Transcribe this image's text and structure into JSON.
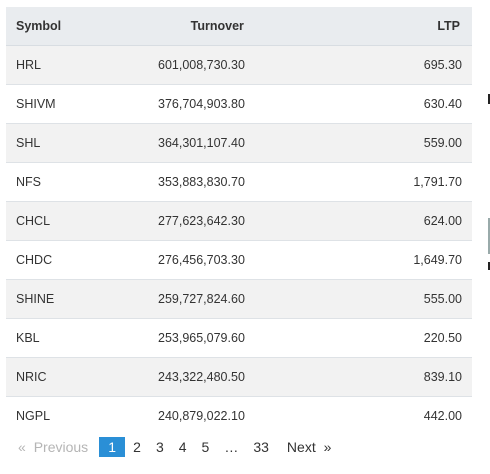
{
  "table": {
    "headers": {
      "symbol": "Symbol",
      "turnover": "Turnover",
      "ltp": "LTP"
    },
    "rows": [
      {
        "symbol": "HRL",
        "turnover": "601,008,730.30",
        "ltp": "695.30"
      },
      {
        "symbol": "SHIVM",
        "turnover": "376,704,903.80",
        "ltp": "630.40"
      },
      {
        "symbol": "SHL",
        "turnover": "364,301,107.40",
        "ltp": "559.00"
      },
      {
        "symbol": "NFS",
        "turnover": "353,883,830.70",
        "ltp": "1,791.70"
      },
      {
        "symbol": "CHCL",
        "turnover": "277,623,642.30",
        "ltp": "624.00"
      },
      {
        "symbol": "CHDC",
        "turnover": "276,456,703.30",
        "ltp": "1,649.70"
      },
      {
        "symbol": "SHINE",
        "turnover": "259,727,824.60",
        "ltp": "555.00"
      },
      {
        "symbol": "KBL",
        "turnover": "253,965,079.60",
        "ltp": "220.50"
      },
      {
        "symbol": "NRIC",
        "turnover": "243,322,480.50",
        "ltp": "839.10"
      },
      {
        "symbol": "NGPL",
        "turnover": "240,879,022.10",
        "ltp": "442.00"
      }
    ]
  },
  "pagination": {
    "prev_arrow": "«",
    "prev_label": "Previous",
    "pages": [
      "1",
      "2",
      "3",
      "4",
      "5"
    ],
    "ellipsis": "…",
    "last_page": "33",
    "next_label": "Next",
    "next_arrow": "»",
    "active_color": "#2a8fd6"
  }
}
